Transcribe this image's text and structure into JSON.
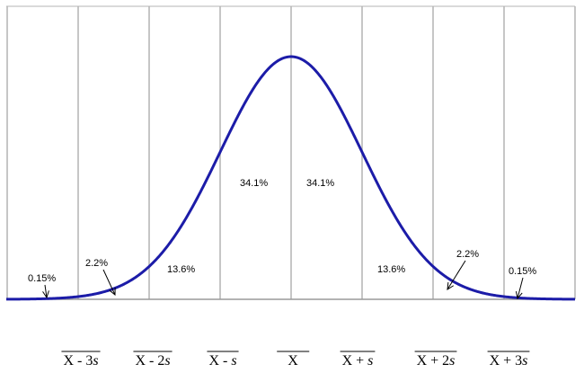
{
  "chart_data": {
    "type": "line",
    "title": "",
    "xlabel": "",
    "ylabel": "",
    "xlim": [
      -4,
      4
    ],
    "grid": "vertical",
    "curve": {
      "distribution": "normal",
      "mean": 0,
      "sd": 1,
      "color": "#1c1ca8"
    },
    "band_boundaries": [
      -3,
      -2,
      -1,
      0,
      1,
      2,
      3
    ],
    "tick_labels": [
      {
        "x": -3,
        "base": "X",
        "op": " - 3",
        "var": "s"
      },
      {
        "x": -2,
        "base": "X",
        "op": " - 2",
        "var": "s"
      },
      {
        "x": -1,
        "base": "X",
        "op": " - ",
        "var": "s"
      },
      {
        "x": 0,
        "base": "X",
        "op": "",
        "var": ""
      },
      {
        "x": 1,
        "base": "X",
        "op": " + ",
        "var": "s"
      },
      {
        "x": 2,
        "base": "X",
        "op": " + 2",
        "var": "s"
      },
      {
        "x": 3,
        "base": "X",
        "op": " + 3",
        "var": "s"
      }
    ],
    "region_labels": [
      {
        "text": "0.15%",
        "region": "below -3",
        "arrow": true
      },
      {
        "text": "2.2%",
        "region": "-3 to -2",
        "arrow": true
      },
      {
        "text": "13.6%",
        "region": "-2 to -1",
        "arrow": false
      },
      {
        "text": "34.1%",
        "region": "-1 to 0",
        "arrow": false
      },
      {
        "text": "34.1%",
        "region": "0 to 1",
        "arrow": false
      },
      {
        "text": "13.6%",
        "region": "1 to 2",
        "arrow": false
      },
      {
        "text": "2.2%",
        "region": "2 to 3",
        "arrow": true
      },
      {
        "text": "0.15%",
        "region": "above 3",
        "arrow": true
      }
    ]
  }
}
